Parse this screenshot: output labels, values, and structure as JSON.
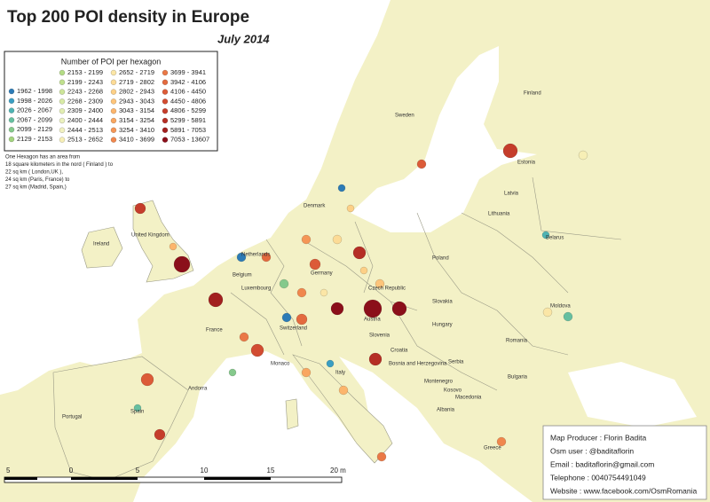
{
  "header": {
    "title": "Top 200 POI density in Europe",
    "subtitle": "July 2014"
  },
  "legend": {
    "title": "Number of POI per hexagon",
    "columns": [
      [
        {
          "label": "1962 - 1998",
          "color": "#2c7bb6"
        },
        {
          "label": "1998 - 2026",
          "color": "#3a9ec2"
        },
        {
          "label": "2026 - 2067",
          "color": "#4fb3b3"
        },
        {
          "label": "2067 - 2099",
          "color": "#66bfa0"
        },
        {
          "label": "2099 - 2129",
          "color": "#85c98c"
        },
        {
          "label": "2129 - 2153",
          "color": "#a3d47e"
        }
      ],
      [
        {
          "label": "2153 - 2199",
          "color": "#b4dc86"
        },
        {
          "label": "2199 - 2243",
          "color": "#c0e08e"
        },
        {
          "label": "2243 - 2268",
          "color": "#cde59a"
        },
        {
          "label": "2268 - 2309",
          "color": "#d8eaa6"
        },
        {
          "label": "2309 - 2400",
          "color": "#e2eeb2"
        },
        {
          "label": "2400 - 2444",
          "color": "#ebf1be"
        },
        {
          "label": "2444 - 2513",
          "color": "#f1f1c0"
        },
        {
          "label": "2513 - 2652",
          "color": "#f7efb6"
        }
      ],
      [
        {
          "label": "2652 - 2719",
          "color": "#fbe6a6"
        },
        {
          "label": "2719 - 2802",
          "color": "#fcdb96"
        },
        {
          "label": "2802 - 2943",
          "color": "#fdd087"
        },
        {
          "label": "2943 - 3043",
          "color": "#fdc47a"
        },
        {
          "label": "3043 - 3154",
          "color": "#fcb56c"
        },
        {
          "label": "3154 - 3254",
          "color": "#f9a660"
        },
        {
          "label": "3254 - 3410",
          "color": "#f59656"
        },
        {
          "label": "3410 - 3699",
          "color": "#f0874d"
        }
      ],
      [
        {
          "label": "3699 - 3941",
          "color": "#ea7846"
        },
        {
          "label": "3942 - 4106",
          "color": "#e36a3f"
        },
        {
          "label": "4106 - 4450",
          "color": "#dc5b38"
        },
        {
          "label": "4450 - 4806",
          "color": "#d24c31"
        },
        {
          "label": "4806 - 5299",
          "color": "#c53d2b"
        },
        {
          "label": "5299 - 5891",
          "color": "#b52e25"
        },
        {
          "label": "5891 - 7053",
          "color": "#a2201f"
        },
        {
          "label": "7053 - 13607",
          "color": "#8b0f1a"
        }
      ]
    ]
  },
  "note": [
    "One Hexagon has an area from",
    "18 square kilometers in the nord ( Finland ) to",
    "22 sq km ( London,UK ),",
    "24 sq km (Paris, France) to",
    "27 sq km (Madrid, Spain,)"
  ],
  "countries": [
    "Finland",
    "Sweden",
    "Estonia",
    "Latvia",
    "Lithuania",
    "Belarus",
    "Poland",
    "Germany",
    "Netherlands",
    "Belgium",
    "Luxembourg",
    "France",
    "Switzerland",
    "Austria",
    "Czech Republic",
    "Slovakia",
    "Hungary",
    "Romania",
    "Moldova",
    "Slovenia",
    "Croatia",
    "Bosnia and Herzegovina",
    "Serbia",
    "Montenegro",
    "Macedonia",
    "Albania",
    "Bulgaria",
    "Italy",
    "Spain",
    "Portugal",
    "Ireland",
    "United Kingdom",
    "Denmark",
    "Greece",
    "Monaco",
    "Andorra",
    "Kosovo"
  ],
  "scale": [
    "5",
    "0",
    "5",
    "10",
    "15",
    "20 m"
  ],
  "credits": [
    "Map Producer : Florin Badita",
    "Osm user : @baditaflorin",
    "Email : baditaflorin@gmail.com",
    "Telephone : 0040754491049",
    "Website : www.facebook.com/OsmRomania"
  ]
}
